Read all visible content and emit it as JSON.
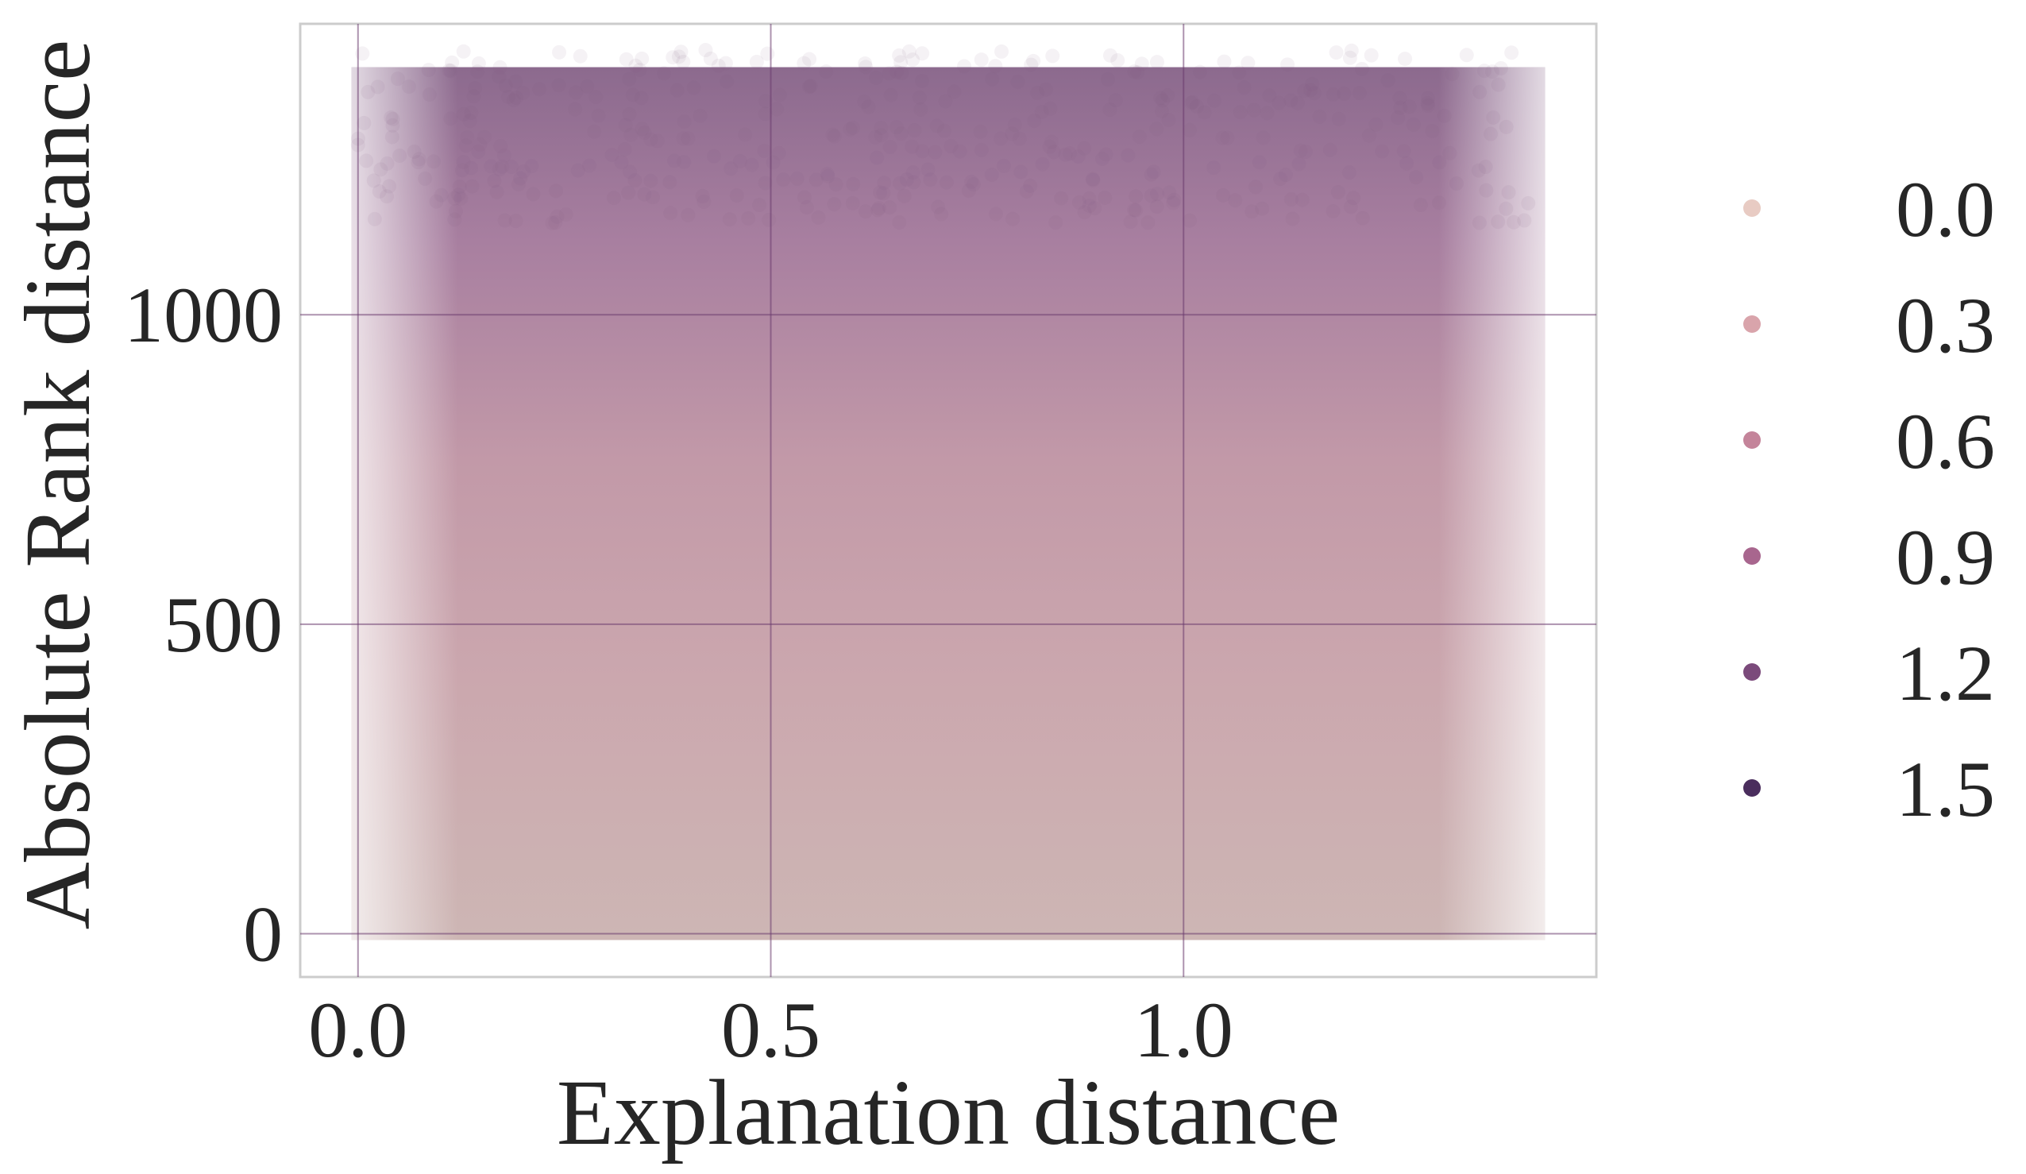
{
  "chart_data": {
    "type": "scatter",
    "title": "",
    "xlabel": "Explanation distance",
    "ylabel": "Absolute Rank distance",
    "xlim": [
      -0.07,
      1.5
    ],
    "ylim": [
      -70,
      1470
    ],
    "x_ticks": [
      0.0,
      0.5,
      1.0
    ],
    "x_tick_labels": [
      "0.0",
      "0.5",
      "1.0"
    ],
    "y_ticks": [
      0,
      500,
      1000
    ],
    "y_tick_labels": [
      "0",
      "500",
      "1000"
    ],
    "grid": true,
    "legend_placement": "right outside",
    "hue_legend": [
      {
        "label": "0.0",
        "value": 0.0,
        "color": "#e8cbc3"
      },
      {
        "label": "0.3",
        "value": 0.3,
        "color": "#d9a4ab"
      },
      {
        "label": "0.6",
        "value": 0.6,
        "color": "#c4849a"
      },
      {
        "label": "0.9",
        "value": 0.9,
        "color": "#a8668e"
      },
      {
        "label": "1.2",
        "value": 1.2,
        "color": "#7b4a7b"
      },
      {
        "label": "1.5",
        "value": 1.5,
        "color": "#4a2d5d"
      }
    ],
    "data_extent": {
      "x_range": [
        0.0,
        1.43
      ],
      "y_range": [
        0,
        1400
      ],
      "description_of_distribution": "dense cloud covering x 0 to ~1.42, y 0 to ~1400; hue increases with rank distance"
    }
  }
}
